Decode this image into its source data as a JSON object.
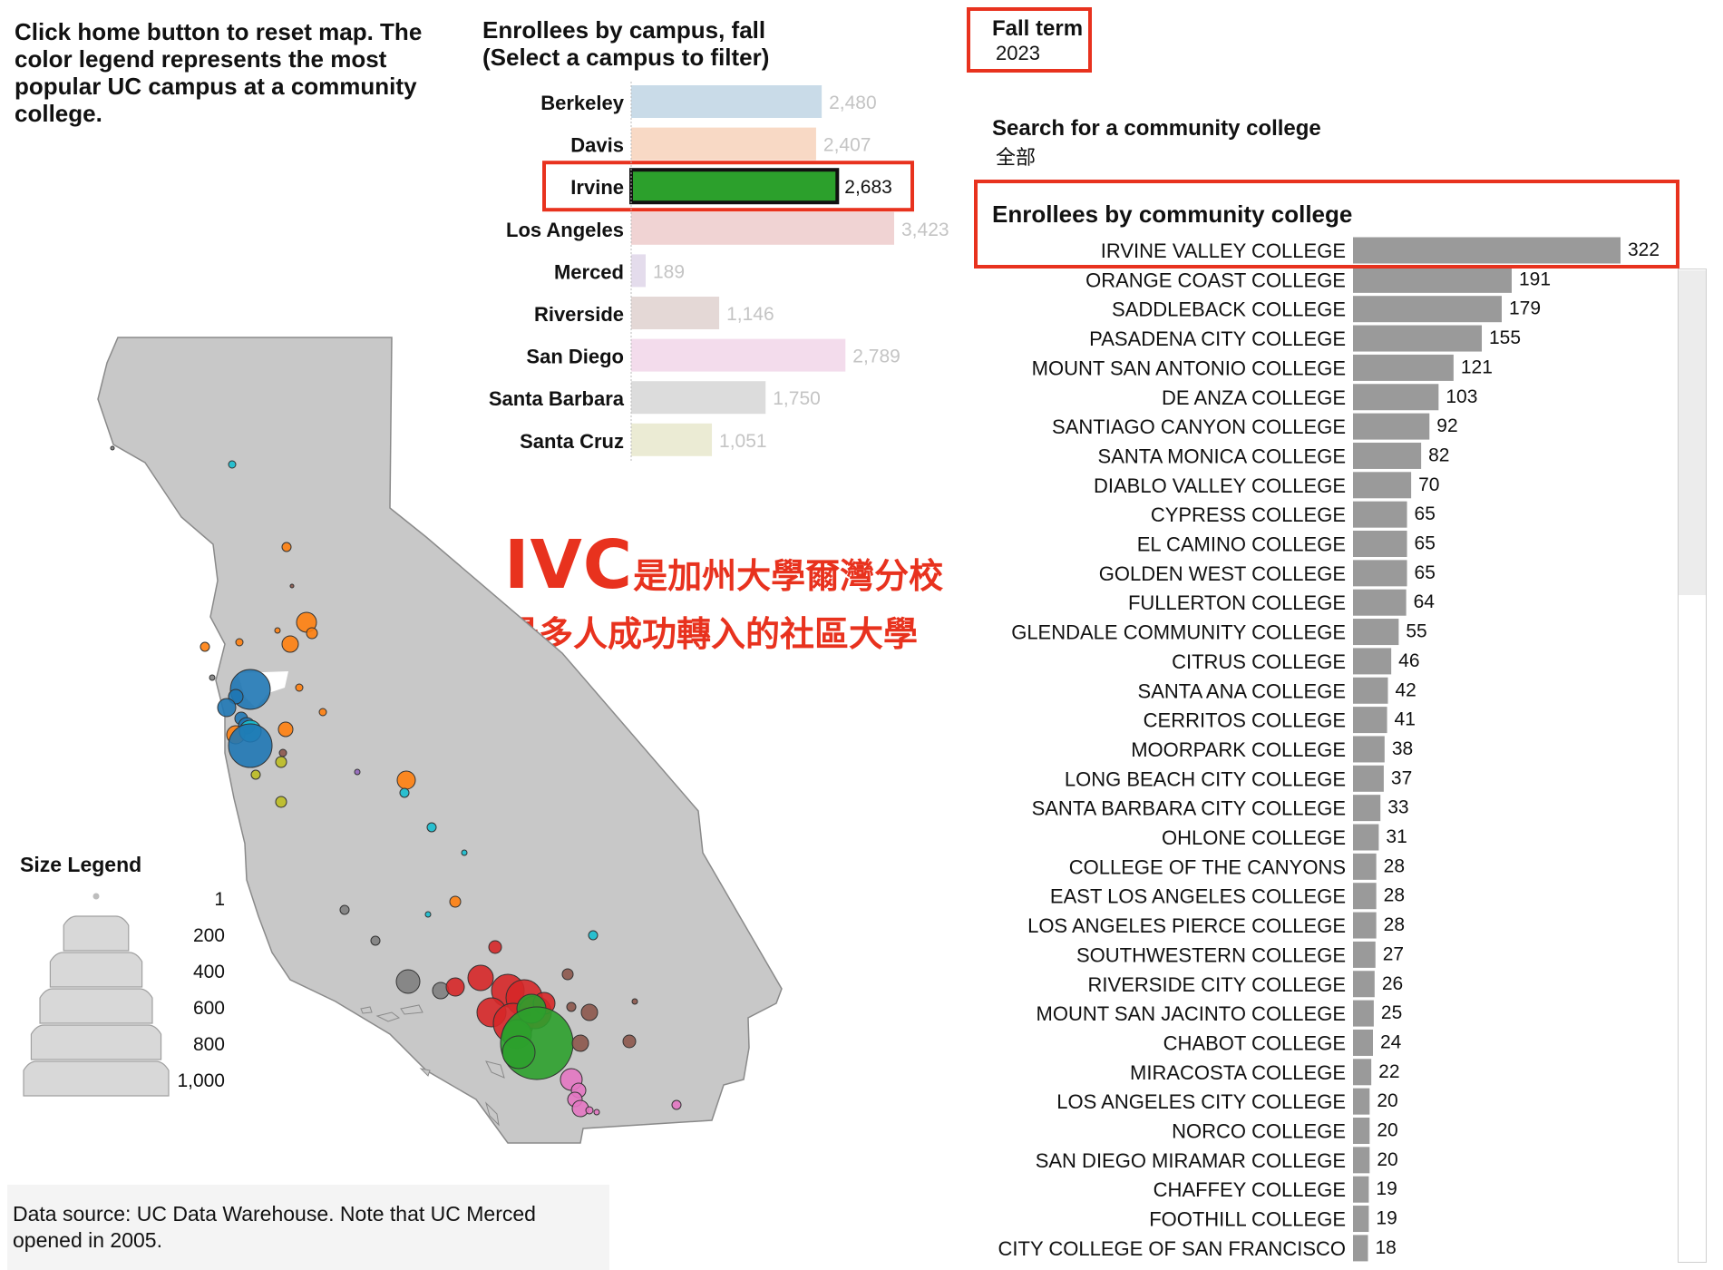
{
  "instructions": {
    "text": "Click home button to reset map. The color legend represents the most popular UC campus at a community college."
  },
  "campus_panel": {
    "title_line1": "Enrollees by campus, fall",
    "title_line2": "(Select a campus to filter)",
    "selected": "Irvine"
  },
  "filters": {
    "term_label": "Fall term",
    "term_value": "2023",
    "search_label": "Search for a community college",
    "search_value": "全部"
  },
  "cc_panel": {
    "title": "Enrollees by community college"
  },
  "callout": {
    "abbr": "IVC",
    "line1": "是加州大學爾灣分校",
    "line2": "最多人成功轉入的社區大學"
  },
  "size_legend": {
    "title": "Size Legend",
    "labels": [
      "1",
      "200",
      "400",
      "600",
      "800",
      "1,000"
    ],
    "values": [
      1,
      200,
      400,
      600,
      800,
      1000
    ]
  },
  "source": {
    "text": "Data source: UC Data Warehouse. Note that UC Merced opened in 2005."
  },
  "colors": {
    "Berkeley": "#c9dbe8",
    "Davis": "#f8d9c5",
    "Irvine": "#2ca02c",
    "Los Angeles": "#f0d3d3",
    "Merced": "#e4dcec",
    "Riverside": "#e4d8d6",
    "San Diego": "#f3dcec",
    "Santa Barbara": "#dcdcdc",
    "Santa Cruz": "#ebebd4",
    "highlight_border": "#e8321e",
    "cc_bar": "#9a9a9a",
    "map_fill": "#c8c8c8",
    "marker_berkeley": "#1f77b4",
    "marker_davis": "#ff7f0e",
    "marker_irvine": "#2ca02c",
    "marker_la": "#d62728",
    "marker_merced": "#9467bd",
    "marker_riverside": "#8c564b",
    "marker_sandiego": "#e377c2",
    "marker_sb": "#7f7f7f",
    "marker_sc": "#bcbd22",
    "marker_cyan": "#17becf"
  },
  "chart_data": [
    {
      "type": "bar",
      "orientation": "horizontal",
      "title": "Enrollees by campus, fall (Select a campus to filter)",
      "categories": [
        "Berkeley",
        "Davis",
        "Irvine",
        "Los Angeles",
        "Merced",
        "Riverside",
        "San Diego",
        "Santa Barbara",
        "Santa Cruz"
      ],
      "values": [
        2480,
        2407,
        2683,
        3423,
        189,
        1146,
        2789,
        1750,
        1051
      ],
      "value_labels": [
        "2,480",
        "2,407",
        "2,683",
        "3,423",
        "189",
        "1,146",
        "2,789",
        "1,750",
        "1,051"
      ],
      "highlighted": "Irvine"
    },
    {
      "type": "bar",
      "orientation": "horizontal",
      "title": "Enrollees by community college",
      "categories": [
        "IRVINE VALLEY COLLEGE",
        "ORANGE COAST COLLEGE",
        "SADDLEBACK COLLEGE",
        "PASADENA CITY COLLEGE",
        "MOUNT SAN ANTONIO COLLEGE",
        "DE ANZA COLLEGE",
        "SANTIAGO CANYON COLLEGE",
        "SANTA MONICA COLLEGE",
        "DIABLO VALLEY COLLEGE",
        "CYPRESS COLLEGE",
        "EL CAMINO COLLEGE",
        "GOLDEN WEST COLLEGE",
        "FULLERTON COLLEGE",
        "GLENDALE COMMUNITY COLLEGE",
        "CITRUS COLLEGE",
        "SANTA ANA COLLEGE",
        "CERRITOS COLLEGE",
        "MOORPARK COLLEGE",
        "LONG BEACH CITY COLLEGE",
        "SANTA BARBARA CITY COLLEGE",
        "OHLONE COLLEGE",
        "COLLEGE OF THE CANYONS",
        "EAST LOS ANGELES COLLEGE",
        "LOS ANGELES PIERCE COLLEGE",
        "SOUTHWESTERN COLLEGE",
        "RIVERSIDE CITY COLLEGE",
        "MOUNT SAN JACINTO COLLEGE",
        "CHABOT COLLEGE",
        "MIRACOSTA COLLEGE",
        "LOS ANGELES CITY COLLEGE",
        "NORCO COLLEGE",
        "SAN DIEGO MIRAMAR COLLEGE",
        "CHAFFEY COLLEGE",
        "FOOTHILL COLLEGE",
        "CITY COLLEGE OF SAN FRANCISCO"
      ],
      "values": [
        322,
        191,
        179,
        155,
        121,
        103,
        92,
        82,
        70,
        65,
        65,
        65,
        64,
        55,
        46,
        42,
        41,
        38,
        37,
        33,
        31,
        28,
        28,
        28,
        27,
        26,
        25,
        24,
        22,
        20,
        20,
        20,
        19,
        19,
        18
      ]
    }
  ]
}
